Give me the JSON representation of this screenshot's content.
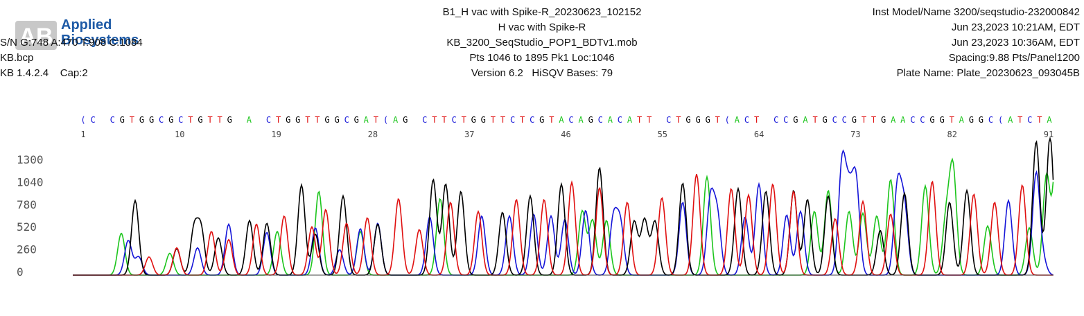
{
  "logo": {
    "line1": "Applied",
    "line2": "Biosystems",
    "mark": "AB",
    "color": "#1d5aa6"
  },
  "header": {
    "left": {
      "sn": "S/N G:748 A:470 T:908 C:1084",
      "mobility": "KB.bcp",
      "basecaller": "KB 1.4.2.4",
      "cap": "Cap:2"
    },
    "center": {
      "sample": "B1_H vac with Spike-R_20230623_102152",
      "sample_name": "H vac with Spike-R",
      "mob": "KB_3200_SeqStudio_POP1_BDTv1.mob",
      "points": "Pts 1046 to 1895 Pk1 Loc:1046",
      "version": "Version 6.2",
      "hisqv": "HiSQV Bases: 79"
    },
    "right": {
      "instrument": "Inst Model/Name 3200/seqstudio-232000842",
      "run_start": "Jun 23,2023 10:21AM, EDT",
      "run_end": "Jun 23,2023 10:36AM, EDT",
      "spacing": "Spacing:9.88  Pts/Panel1200",
      "plate": "Plate Name: Plate_20230623_093045B"
    }
  },
  "chart_data": {
    "type": "line",
    "sequence": "(C CGTGGCGCTGTTG A CTGGTTGGCGAT(AG CTTCTGGTTCTCGTACAGCACATT CTGGGT(ACT CCGATGCCGTTGAACCGGTAGGC(ATCTA",
    "base_positions": [
      "1",
      "10",
      "19",
      "28",
      "37",
      "46",
      "55",
      "64",
      "73",
      "82",
      "91"
    ],
    "y_ticks": [
      "1300",
      "1040",
      "780",
      "520",
      "260",
      "0"
    ],
    "ylim": [
      0,
      1500
    ],
    "base_colors": {
      "A": "#1cc51c",
      "C": "#1515d8",
      "G": "#000000",
      "T": "#e01010"
    },
    "traces": {
      "A": [
        [
          70,
          460
        ],
        [
          140,
          240
        ],
        [
          295,
          480
        ],
        [
          355,
          920
        ],
        [
          415,
          480
        ],
        [
          530,
          840
        ],
        [
          735,
          700
        ],
        [
          750,
          600
        ],
        [
          770,
          600
        ],
        [
          915,
          1080
        ],
        [
          1070,
          700
        ],
        [
          1090,
          930
        ],
        [
          1120,
          700
        ],
        [
          1140,
          680
        ],
        [
          1160,
          650
        ],
        [
          1180,
          1050
        ],
        [
          1230,
          980
        ],
        [
          1260,
          600
        ],
        [
          1270,
          1160
        ],
        [
          1320,
          540
        ],
        [
          1380,
          520
        ],
        [
          1405,
          1100
        ],
        [
          1420,
          1400
        ],
        [
          1430,
          1400
        ]
      ],
      "C": [
        [
          80,
          380
        ],
        [
          95,
          200
        ],
        [
          180,
          300
        ],
        [
          225,
          560
        ],
        [
          280,
          470
        ],
        [
          350,
          520
        ],
        [
          385,
          280
        ],
        [
          415,
          510
        ],
        [
          440,
          570
        ],
        [
          515,
          640
        ],
        [
          590,
          650
        ],
        [
          630,
          650
        ],
        [
          665,
          670
        ],
        [
          690,
          650
        ],
        [
          710,
          610
        ],
        [
          740,
          710
        ],
        [
          780,
          610
        ],
        [
          790,
          560
        ],
        [
          880,
          800
        ],
        [
          920,
          820
        ],
        [
          930,
          640
        ],
        [
          970,
          640
        ],
        [
          990,
          1000
        ],
        [
          1030,
          660
        ],
        [
          1050,
          700
        ],
        [
          1110,
          1210
        ],
        [
          1120,
          780
        ],
        [
          1130,
          1020
        ],
        [
          1190,
          970
        ],
        [
          1200,
          720
        ],
        [
          1350,
          820
        ],
        [
          1390,
          1110
        ],
        [
          1400,
          150
        ]
      ],
      "G": [
        [
          90,
          820
        ],
        [
          150,
          290
        ],
        [
          175,
          500
        ],
        [
          185,
          500
        ],
        [
          210,
          410
        ],
        [
          255,
          600
        ],
        [
          280,
          570
        ],
        [
          330,
          990
        ],
        [
          350,
          450
        ],
        [
          390,
          870
        ],
        [
          440,
          560
        ],
        [
          520,
          1050
        ],
        [
          538,
          1000
        ],
        [
          560,
          920
        ],
        [
          620,
          690
        ],
        [
          660,
          870
        ],
        [
          705,
          1000
        ],
        [
          760,
          1180
        ],
        [
          810,
          590
        ],
        [
          825,
          610
        ],
        [
          840,
          590
        ],
        [
          880,
          1010
        ],
        [
          960,
          950
        ],
        [
          1000,
          920
        ],
        [
          1040,
          930
        ],
        [
          1060,
          830
        ],
        [
          1090,
          870
        ],
        [
          1165,
          490
        ],
        [
          1200,
          900
        ],
        [
          1265,
          800
        ],
        [
          1290,
          930
        ],
        [
          1390,
          1470
        ],
        [
          1410,
          1520
        ]
      ],
      "T": [
        [
          110,
          200
        ],
        [
          150,
          300
        ],
        [
          200,
          480
        ],
        [
          225,
          390
        ],
        [
          265,
          560
        ],
        [
          305,
          650
        ],
        [
          345,
          530
        ],
        [
          365,
          720
        ],
        [
          395,
          570
        ],
        [
          425,
          630
        ],
        [
          470,
          840
        ],
        [
          500,
          500
        ],
        [
          545,
          800
        ],
        [
          585,
          700
        ],
        [
          640,
          830
        ],
        [
          680,
          830
        ],
        [
          720,
          1020
        ],
        [
          760,
          960
        ],
        [
          800,
          800
        ],
        [
          850,
          850
        ],
        [
          900,
          1110
        ],
        [
          950,
          950
        ],
        [
          975,
          880
        ],
        [
          1010,
          1000
        ],
        [
          1040,
          920
        ],
        [
          1100,
          620
        ],
        [
          1140,
          810
        ],
        [
          1180,
          670
        ],
        [
          1240,
          1030
        ],
        [
          1300,
          890
        ],
        [
          1330,
          800
        ],
        [
          1370,
          990
        ]
      ]
    }
  }
}
